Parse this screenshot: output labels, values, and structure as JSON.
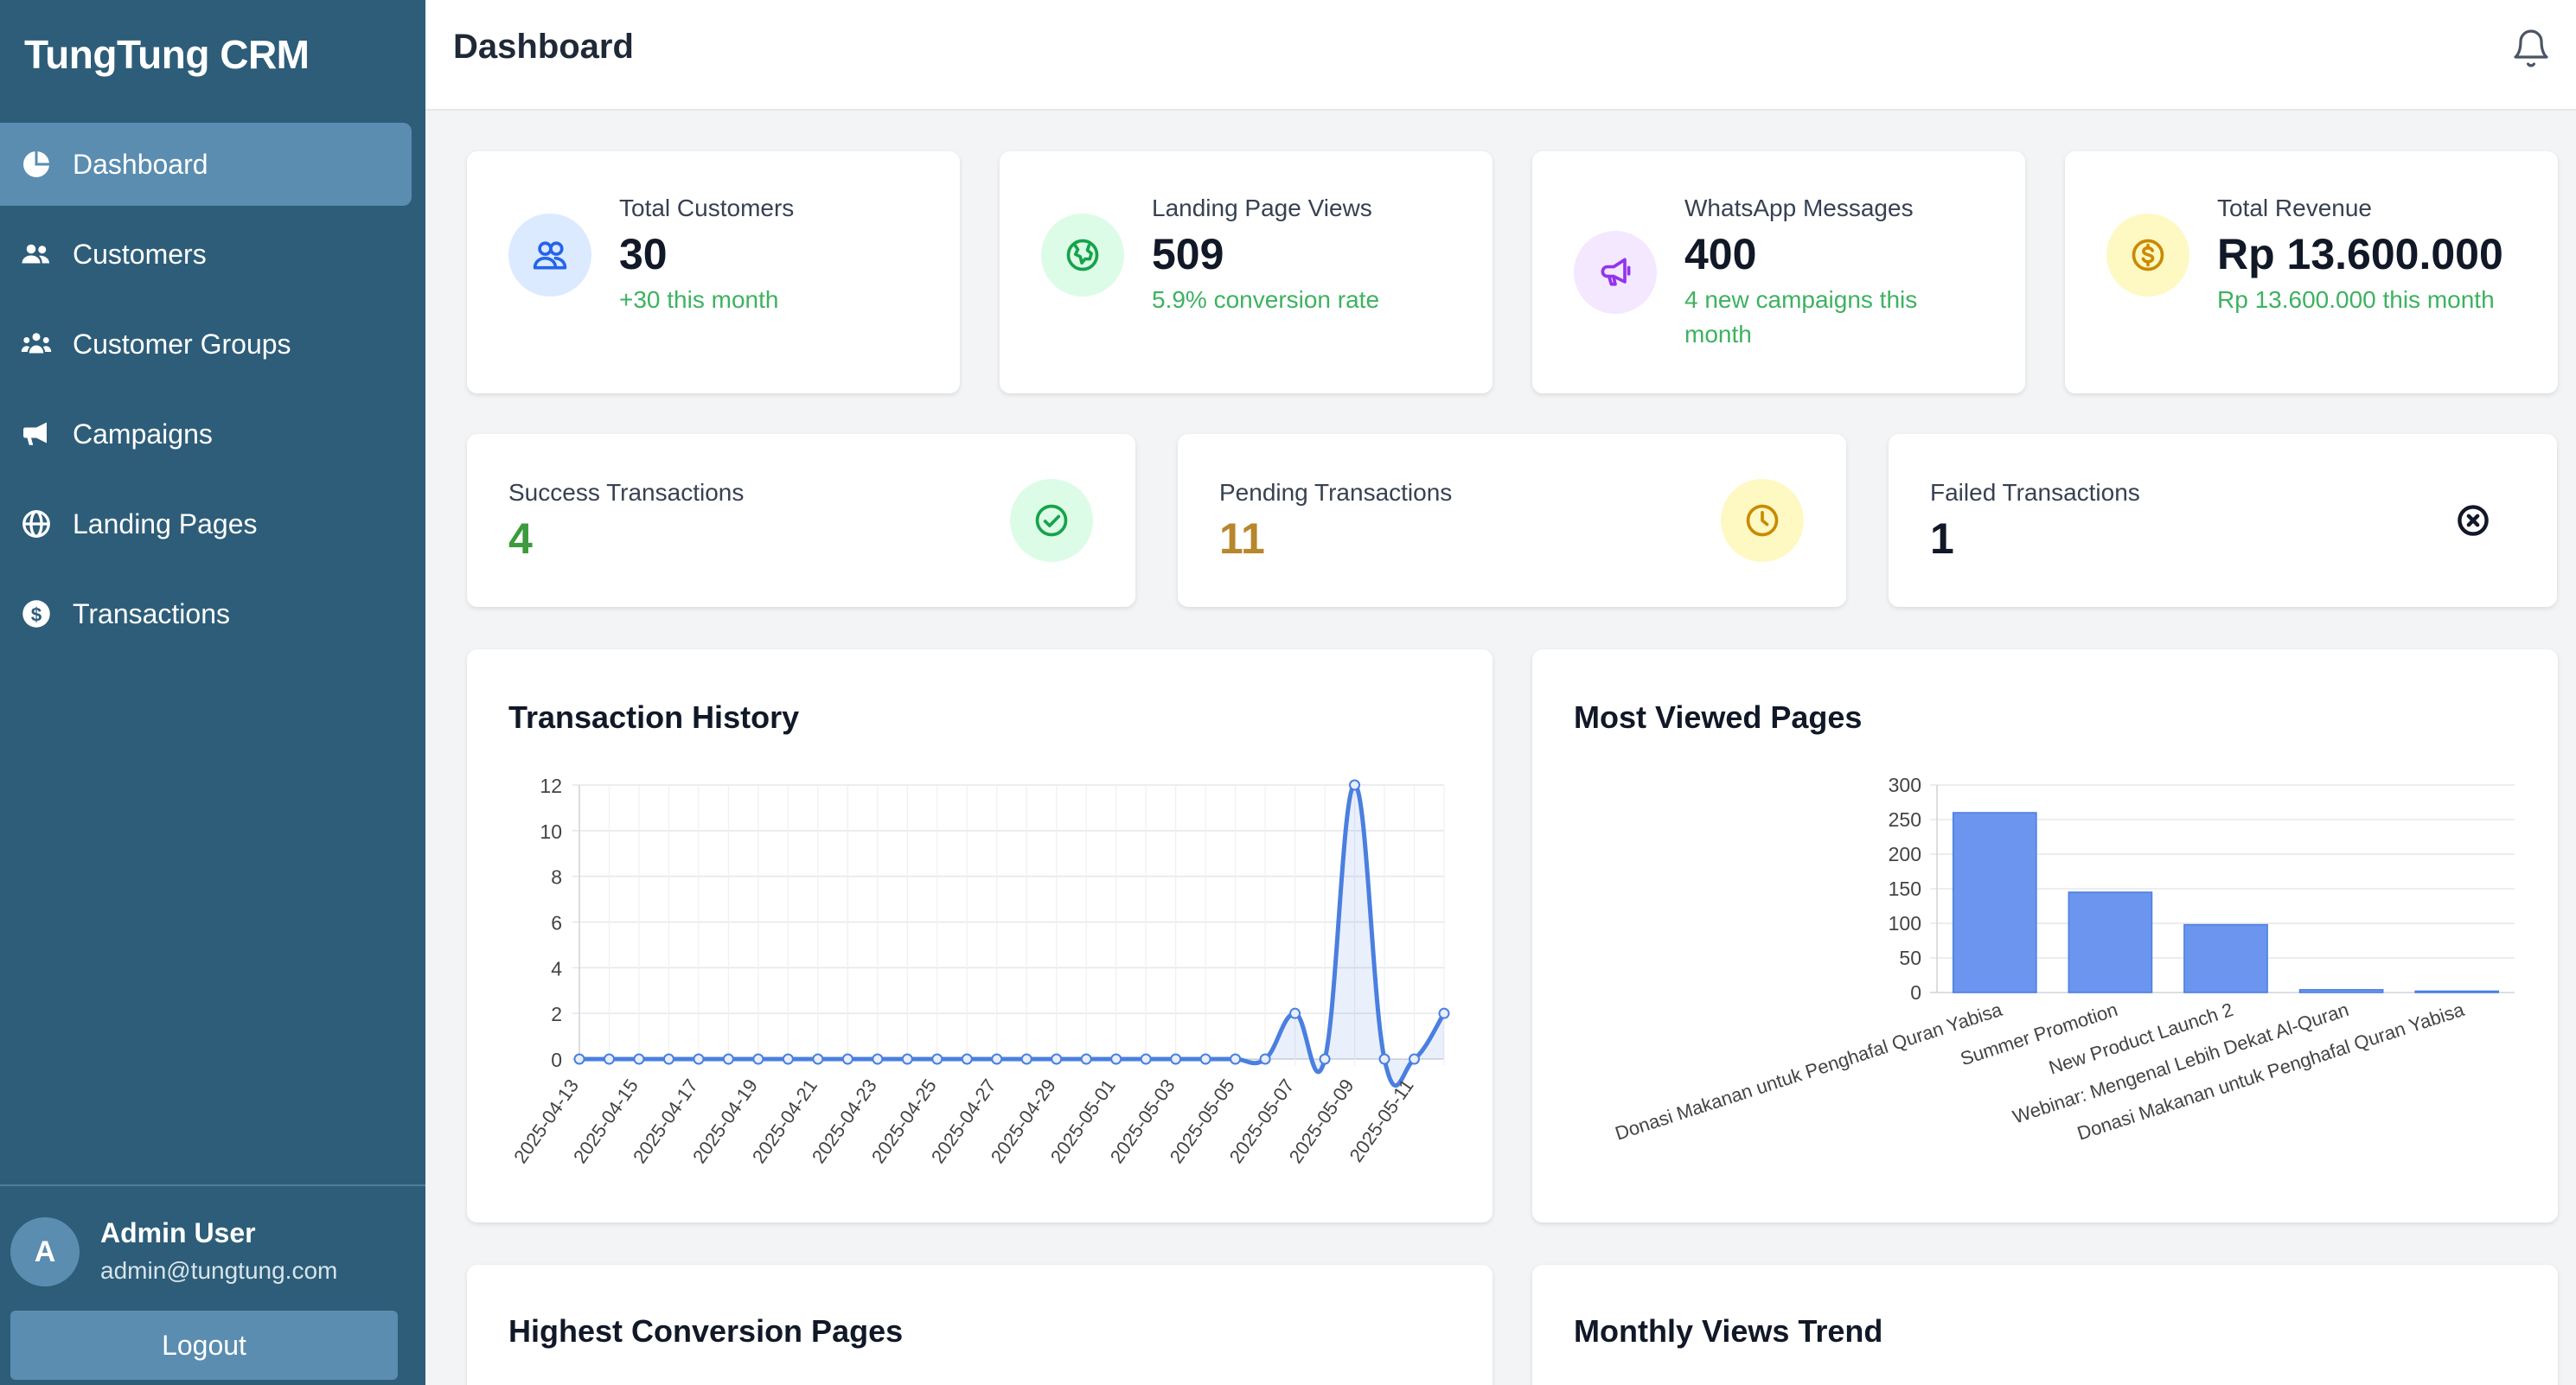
{
  "app": {
    "brand": "TungTung CRM"
  },
  "sidebar": {
    "items": [
      {
        "label": "Dashboard",
        "icon": "pie-chart-icon",
        "active": true
      },
      {
        "label": "Customers",
        "icon": "users-icon"
      },
      {
        "label": "Customer Groups",
        "icon": "user-group-icon"
      },
      {
        "label": "Campaigns",
        "icon": "megaphone-icon"
      },
      {
        "label": "Landing Pages",
        "icon": "globe-icon"
      },
      {
        "label": "Transactions",
        "icon": "dollar-circle-icon"
      }
    ],
    "user": {
      "initial": "A",
      "name": "Admin User",
      "email": "admin@tungtung.com"
    },
    "logout_label": "Logout"
  },
  "header": {
    "title": "Dashboard",
    "icon": "bell-icon"
  },
  "stats": [
    {
      "label": "Total Customers",
      "value": "30",
      "sub": "+30 this month",
      "icon": "users-icon",
      "bg": "#dbeafe",
      "color": "#2563eb"
    },
    {
      "label": "Landing Page Views",
      "value": "509",
      "sub": "5.9% conversion rate",
      "icon": "globe-icon",
      "bg": "#dcfce7",
      "color": "#16a34a"
    },
    {
      "label": "WhatsApp Messages",
      "value": "400",
      "sub": "4 new campaigns this month",
      "icon": "megaphone-icon",
      "bg": "#f3e8ff",
      "color": "#9333ea"
    },
    {
      "label": "Total Revenue",
      "value": "Rp 13.600.000",
      "sub": "Rp 13.600.000 this month",
      "icon": "dollar-circle-icon",
      "bg": "#fef9c3",
      "color": "#ca8a04"
    }
  ],
  "transactions": [
    {
      "label": "Success Transactions",
      "value": "4",
      "color": "#3d9a3d",
      "icon": "check-circle-icon",
      "bg": "#dcfce7",
      "iconColor": "#16a34a"
    },
    {
      "label": "Pending Transactions",
      "value": "11",
      "color": "#b8862b",
      "icon": "clock-icon",
      "bg": "#fef9c3",
      "iconColor": "#ca8a04"
    },
    {
      "label": "Failed Transactions",
      "value": "1",
      "color": "#111827",
      "icon": "x-circle-icon",
      "bg": "#ffffff",
      "iconColor": "#111827"
    }
  ],
  "sections": {
    "history_title": "Transaction History",
    "most_viewed_title": "Most Viewed Pages",
    "conversion_title": "Highest Conversion Pages",
    "monthly_title": "Monthly Views Trend"
  },
  "chart_data": [
    {
      "type": "line",
      "title": "Transaction History",
      "x": [
        "2025-04-13",
        "2025-04-14",
        "2025-04-15",
        "2025-04-16",
        "2025-04-17",
        "2025-04-18",
        "2025-04-19",
        "2025-04-20",
        "2025-04-21",
        "2025-04-22",
        "2025-04-23",
        "2025-04-24",
        "2025-04-25",
        "2025-04-26",
        "2025-04-27",
        "2025-04-28",
        "2025-04-29",
        "2025-04-30",
        "2025-05-01",
        "2025-05-02",
        "2025-05-03",
        "2025-05-04",
        "2025-05-05",
        "2025-05-06",
        "2025-05-07",
        "2025-05-08",
        "2025-05-09",
        "2025-05-10",
        "2025-05-11",
        "2025-05-12"
      ],
      "xticks": [
        "2025-04-13",
        "2025-04-15",
        "2025-04-17",
        "2025-04-19",
        "2025-04-21",
        "2025-04-23",
        "2025-04-25",
        "2025-04-27",
        "2025-04-29",
        "2025-05-01",
        "2025-05-03",
        "2025-05-05",
        "2025-05-07",
        "2025-05-09",
        "2025-05-11"
      ],
      "y": [
        0,
        0,
        0,
        0,
        0,
        0,
        0,
        0,
        0,
        0,
        0,
        0,
        0,
        0,
        0,
        0,
        0,
        0,
        0,
        0,
        0,
        0,
        0,
        0,
        2,
        0,
        12,
        0,
        0,
        2
      ],
      "ylim": [
        0,
        12
      ],
      "yticks": [
        0,
        2,
        4,
        6,
        8,
        10,
        12
      ],
      "grid": true,
      "color": "#4a7fe0"
    },
    {
      "type": "bar",
      "title": "Most Viewed Pages",
      "categories": [
        "Donasi Makanan untuk Penghafal Quran Yabisa",
        "Summer Promotion",
        "New Product Launch 2",
        "Webinar: Mengenal Lebih Dekat Al-Quran",
        "Donasi Makanan untuk Penghafal Quran Yabisa"
      ],
      "values": [
        260,
        145,
        98,
        4,
        2
      ],
      "ylim": [
        0,
        300
      ],
      "yticks": [
        0,
        50,
        100,
        150,
        200,
        250,
        300
      ],
      "grid": true,
      "color": "#6b95ee"
    }
  ]
}
